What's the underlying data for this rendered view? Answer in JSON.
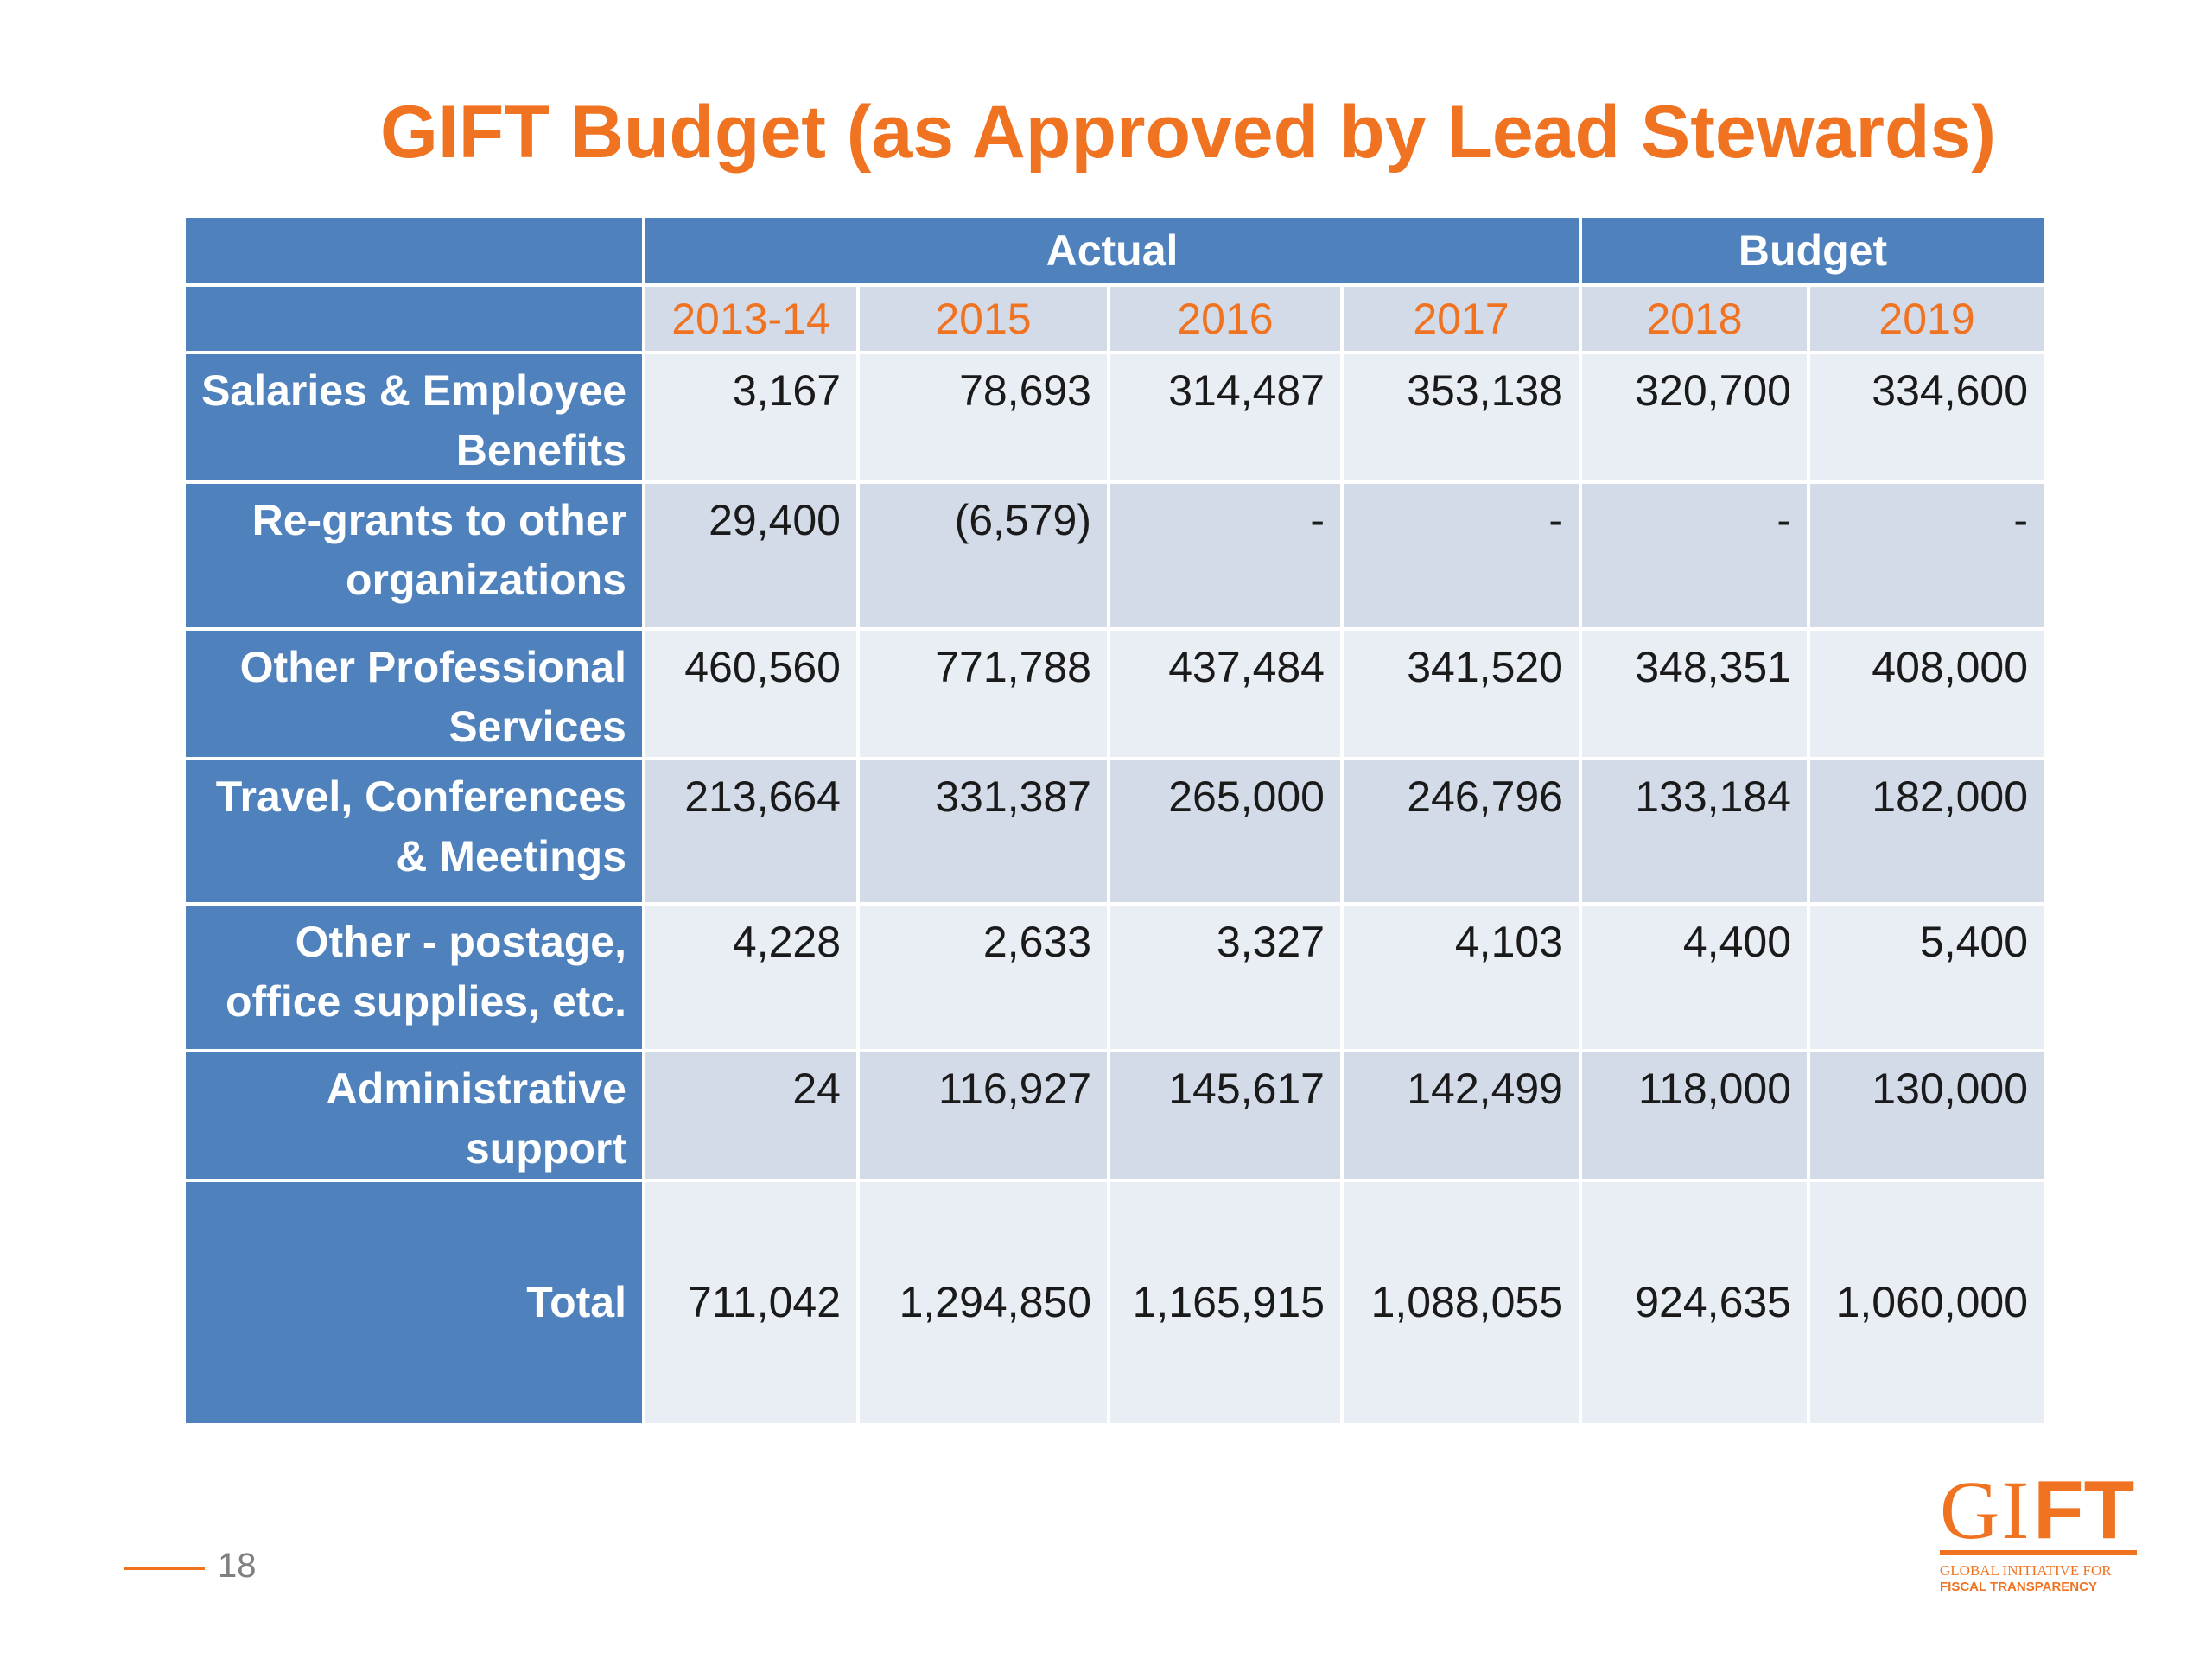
{
  "title": "GIFT Budget (as Approved by Lead Stewards)",
  "table": {
    "group_headers": {
      "actual": "Actual",
      "budget": "Budget"
    },
    "years": [
      "2013-14",
      "2015",
      "2016",
      "2017",
      "2018",
      "2019"
    ],
    "rows": [
      {
        "label": "Salaries & Employee Benefits",
        "values": [
          "3,167",
          "78,693",
          "314,487",
          "353,138",
          "320,700",
          "334,600"
        ]
      },
      {
        "label": "Re-grants to other organizations",
        "values": [
          "29,400",
          "(6,579)",
          "-",
          "-",
          "-",
          "-"
        ]
      },
      {
        "label": "Other Professional Services",
        "values": [
          "460,560",
          "771,788",
          "437,484",
          "341,520",
          "348,351",
          "408,000"
        ]
      },
      {
        "label": "Travel, Conferences & Meetings",
        "values": [
          "213,664",
          "331,387",
          "265,000",
          "246,796",
          "133,184",
          "182,000"
        ]
      },
      {
        "label": "Other - postage, office supplies, etc.",
        "values": [
          "4,228",
          "2,633",
          "3,327",
          "4,103",
          "4,400",
          "5,400"
        ]
      },
      {
        "label": "Administrative support",
        "values": [
          "24",
          "116,927",
          "145,617",
          "142,499",
          "118,000",
          "130,000"
        ]
      }
    ],
    "total": {
      "label": "Total",
      "values": [
        "711,042",
        "1,294,850",
        "1,165,915",
        "1,088,055",
        "924,635",
        "1,060,000"
      ]
    }
  },
  "footer": {
    "page_number": "18"
  },
  "logo": {
    "mark_gi": "GI",
    "mark_ft": "FT",
    "line1": "GLOBAL INITIATIVE FOR",
    "line2": "FISCAL TRANSPARENCY"
  },
  "colors": {
    "accent_orange": "#f07322",
    "header_blue": "#4f81bd",
    "band_light": "#e9edf4",
    "band_dark": "#d3dbe8"
  }
}
